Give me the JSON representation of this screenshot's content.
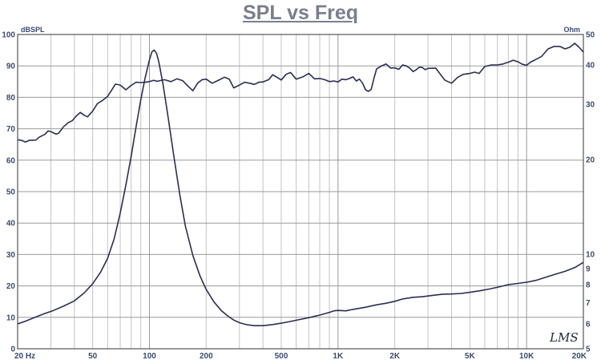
{
  "chart_data": {
    "type": "line",
    "title": "SPL vs Freq",
    "xscale": "log",
    "xlim": [
      20,
      20000
    ],
    "ylim": [
      0,
      100
    ],
    "y2lim": [
      5,
      50
    ],
    "y2scale": "log",
    "grid": true,
    "left_unit": "dBSPL",
    "right_unit": "Ohm",
    "logo": "LMS",
    "x_ticks": [
      {
        "value": 20,
        "label": "20  Hz"
      },
      {
        "value": 50,
        "label": "50"
      },
      {
        "value": 100,
        "label": "100"
      },
      {
        "value": 200,
        "label": "200"
      },
      {
        "value": 500,
        "label": "500"
      },
      {
        "value": 1000,
        "label": "1K"
      },
      {
        "value": 2000,
        "label": "2K"
      },
      {
        "value": 5000,
        "label": "5K"
      },
      {
        "value": 10000,
        "label": "10K"
      },
      {
        "value": 20000,
        "label": "20K"
      }
    ],
    "y_ticks": [
      "100",
      "90",
      "80",
      "70",
      "60",
      "50",
      "40",
      "30",
      "20",
      "10",
      "0"
    ],
    "y_tick_values": [
      100,
      90,
      80,
      70,
      60,
      50,
      40,
      30,
      20,
      10,
      0
    ],
    "y2_ticks": [
      {
        "value": 50,
        "label": "50"
      },
      {
        "value": 40,
        "label": "40"
      },
      {
        "value": 30,
        "label": "30"
      },
      {
        "value": 20,
        "label": "20"
      },
      {
        "value": 10,
        "label": "10"
      },
      {
        "value": 9,
        "label": "9"
      },
      {
        "value": 8,
        "label": "8"
      },
      {
        "value": 7,
        "label": "7"
      },
      {
        "value": 6,
        "label": "6"
      },
      {
        "value": 5,
        "label": "5"
      }
    ],
    "series": [
      {
        "color": "#2b2e52",
        "axis": "left",
        "points": [
          [
            20,
            66.5
          ],
          [
            21,
            66.3
          ],
          [
            22,
            65.8
          ],
          [
            23,
            66.3
          ],
          [
            25,
            66.4
          ],
          [
            26,
            67.3
          ],
          [
            28,
            68.3
          ],
          [
            29,
            69.3
          ],
          [
            30,
            69.1
          ],
          [
            32,
            68.3
          ],
          [
            33,
            68.6
          ],
          [
            35,
            70.6
          ],
          [
            37,
            71.9
          ],
          [
            39,
            72.6
          ],
          [
            41,
            74.1
          ],
          [
            43,
            75.2
          ],
          [
            45,
            74.3
          ],
          [
            47,
            73.8
          ],
          [
            50,
            75.6
          ],
          [
            53,
            78.0
          ],
          [
            56,
            78.9
          ],
          [
            60,
            80.3
          ],
          [
            63,
            82.3
          ],
          [
            66,
            84.2
          ],
          [
            70,
            83.9
          ],
          [
            75,
            82.4
          ],
          [
            80,
            83.8
          ],
          [
            85,
            84.8
          ],
          [
            90,
            84.7
          ],
          [
            95,
            84.8
          ],
          [
            100,
            85.0
          ],
          [
            105,
            85.4
          ],
          [
            110,
            85.1
          ],
          [
            120,
            85.6
          ],
          [
            130,
            85.0
          ],
          [
            140,
            85.9
          ],
          [
            150,
            85.3
          ],
          [
            160,
            83.6
          ],
          [
            170,
            82.1
          ],
          [
            180,
            84.5
          ],
          [
            190,
            85.6
          ],
          [
            200,
            85.8
          ],
          [
            215,
            84.5
          ],
          [
            230,
            85.3
          ],
          [
            250,
            86.4
          ],
          [
            265,
            85.8
          ],
          [
            280,
            83.0
          ],
          [
            300,
            83.9
          ],
          [
            320,
            84.8
          ],
          [
            340,
            84.5
          ],
          [
            360,
            84.1
          ],
          [
            380,
            84.8
          ],
          [
            400,
            84.9
          ],
          [
            430,
            85.7
          ],
          [
            450,
            87.2
          ],
          [
            480,
            86.2
          ],
          [
            500,
            85.5
          ],
          [
            530,
            87.3
          ],
          [
            560,
            87.9
          ],
          [
            600,
            85.8
          ],
          [
            650,
            86.5
          ],
          [
            700,
            87.6
          ],
          [
            750,
            85.9
          ],
          [
            800,
            86.0
          ],
          [
            850,
            85.6
          ],
          [
            900,
            85.0
          ],
          [
            950,
            85.2
          ],
          [
            1000,
            84.9
          ],
          [
            1050,
            85.8
          ],
          [
            1100,
            85.6
          ],
          [
            1150,
            86.0
          ],
          [
            1200,
            86.5
          ],
          [
            1250,
            85.2
          ],
          [
            1300,
            85.8
          ],
          [
            1350,
            84.5
          ],
          [
            1400,
            82.4
          ],
          [
            1450,
            81.9
          ],
          [
            1500,
            82.6
          ],
          [
            1550,
            86.0
          ],
          [
            1600,
            89.0
          ],
          [
            1700,
            90.0
          ],
          [
            1800,
            90.6
          ],
          [
            1900,
            89.3
          ],
          [
            2000,
            89.4
          ],
          [
            2100,
            88.9
          ],
          [
            2200,
            90.3
          ],
          [
            2300,
            90.0
          ],
          [
            2400,
            89.3
          ],
          [
            2500,
            88.2
          ],
          [
            2600,
            88.8
          ],
          [
            2700,
            89.6
          ],
          [
            2800,
            89.5
          ],
          [
            2900,
            88.8
          ],
          [
            3000,
            89.2
          ],
          [
            3300,
            89.3
          ],
          [
            3500,
            87.2
          ],
          [
            3700,
            85.4
          ],
          [
            4000,
            84.5
          ],
          [
            4300,
            86.3
          ],
          [
            4600,
            87.3
          ],
          [
            5000,
            87.6
          ],
          [
            5300,
            88.0
          ],
          [
            5600,
            87.6
          ],
          [
            6000,
            89.8
          ],
          [
            6500,
            90.3
          ],
          [
            7000,
            90.3
          ],
          [
            7500,
            90.6
          ],
          [
            8000,
            91.2
          ],
          [
            8500,
            91.8
          ],
          [
            9000,
            91.3
          ],
          [
            9500,
            90.5
          ],
          [
            10000,
            90.2
          ],
          [
            10500,
            91.2
          ],
          [
            11000,
            91.8
          ],
          [
            12000,
            93.0
          ],
          [
            13000,
            95.4
          ],
          [
            14000,
            96.2
          ],
          [
            15000,
            96.2
          ],
          [
            16000,
            95.4
          ],
          [
            17000,
            96.0
          ],
          [
            18000,
            97.2
          ],
          [
            19000,
            95.9
          ],
          [
            20000,
            94.4
          ]
        ]
      },
      {
        "color": "#2b2e52",
        "axis": "right",
        "points": [
          [
            20,
            6.0
          ],
          [
            22,
            6.12
          ],
          [
            24,
            6.25
          ],
          [
            26,
            6.37
          ],
          [
            28,
            6.48
          ],
          [
            31,
            6.62
          ],
          [
            35,
            6.83
          ],
          [
            40,
            7.1
          ],
          [
            45,
            7.52
          ],
          [
            50,
            8.05
          ],
          [
            55,
            8.75
          ],
          [
            60,
            9.7
          ],
          [
            65,
            11.2
          ],
          [
            70,
            13.5
          ],
          [
            75,
            16.6
          ],
          [
            80,
            20.5
          ],
          [
            85,
            25.5
          ],
          [
            90,
            31.0
          ],
          [
            95,
            36.5
          ],
          [
            100,
            41.5
          ],
          [
            103,
            44.0
          ],
          [
            106,
            44.6
          ],
          [
            109,
            43.6
          ],
          [
            112,
            41.0
          ],
          [
            118,
            34.8
          ],
          [
            125,
            27.8
          ],
          [
            135,
            20.3
          ],
          [
            145,
            15.4
          ],
          [
            155,
            12.3
          ],
          [
            170,
            9.9
          ],
          [
            185,
            8.55
          ],
          [
            200,
            7.72
          ],
          [
            220,
            7.04
          ],
          [
            240,
            6.62
          ],
          [
            260,
            6.36
          ],
          [
            280,
            6.17
          ],
          [
            300,
            6.05
          ],
          [
            330,
            5.96
          ],
          [
            360,
            5.92
          ],
          [
            400,
            5.92
          ],
          [
            450,
            5.97
          ],
          [
            500,
            6.03
          ],
          [
            560,
            6.11
          ],
          [
            630,
            6.2
          ],
          [
            700,
            6.28
          ],
          [
            800,
            6.4
          ],
          [
            900,
            6.53
          ],
          [
            950,
            6.6
          ],
          [
            1000,
            6.62
          ],
          [
            1100,
            6.6
          ],
          [
            1200,
            6.67
          ],
          [
            1400,
            6.78
          ],
          [
            1600,
            6.9
          ],
          [
            1800,
            6.98
          ],
          [
            2000,
            7.08
          ],
          [
            2200,
            7.2
          ],
          [
            2500,
            7.29
          ],
          [
            2800,
            7.32
          ],
          [
            3200,
            7.4
          ],
          [
            3600,
            7.46
          ],
          [
            4000,
            7.47
          ],
          [
            4500,
            7.5
          ],
          [
            5000,
            7.56
          ],
          [
            5600,
            7.64
          ],
          [
            6300,
            7.74
          ],
          [
            7100,
            7.86
          ],
          [
            8000,
            8.0
          ],
          [
            9000,
            8.07
          ],
          [
            10000,
            8.14
          ],
          [
            11200,
            8.25
          ],
          [
            12500,
            8.43
          ],
          [
            14000,
            8.61
          ],
          [
            16000,
            8.82
          ],
          [
            18000,
            9.06
          ],
          [
            20000,
            9.42
          ]
        ]
      }
    ]
  }
}
